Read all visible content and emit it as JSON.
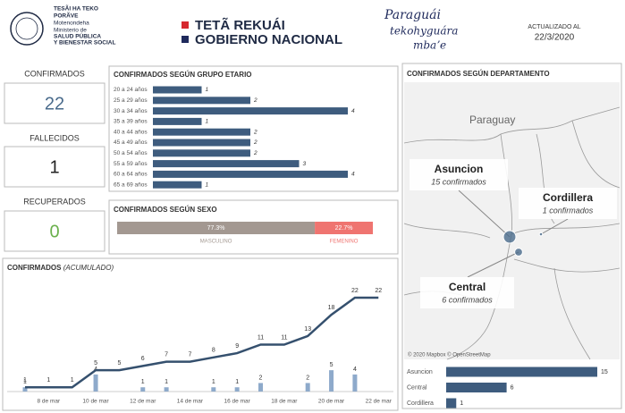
{
  "header": {
    "ministry": [
      "TESÃI HA TEKO",
      "PORÃVE",
      "Motenondeha",
      "Ministerio de",
      "SALUD PÚBLICA",
      "Y BIENESTAR SOCIAL"
    ],
    "slogan": [
      "TETÃ REKUÁI",
      "GOBIERNO NACIONAL"
    ],
    "script_logo": [
      "Paraguái",
      "tekohyguára",
      "mbaʼe"
    ],
    "updated_label": "ACTUALIZADO AL",
    "updated_date": "22/3/2020"
  },
  "kpis": [
    {
      "label": "CONFIRMADOS",
      "value": 22,
      "color": "#4a6b8c"
    },
    {
      "label": "FALLECIDOS",
      "value": 1,
      "color": "#222222"
    },
    {
      "label": "RECUPERADOS",
      "value": 0,
      "color": "#6ab04c"
    }
  ],
  "chart_data": [
    {
      "type": "hbar",
      "title": "CONFIRMADOS SEGÚN GRUPO ETARIO",
      "categories": [
        "20 a 24 años",
        "25 a 29 años",
        "30 a 34 años",
        "35 a 39 años",
        "40 a 44 años",
        "45 a 49 años",
        "50 a 54 años",
        "55 a 59 años",
        "60 a 64 años",
        "65 a 69 años"
      ],
      "values": [
        1,
        2,
        4,
        1,
        2,
        2,
        2,
        3,
        4,
        1
      ],
      "color": "#3e5c7e"
    },
    {
      "type": "stacked",
      "title": "CONFIRMADOS SEGÚN SEXO",
      "categories": [
        "MASCULINO",
        "FEMENINO"
      ],
      "values": [
        77.3,
        22.7
      ],
      "value_labels": [
        "77.3%",
        "22.7%"
      ],
      "colors": [
        "#a39891",
        "#ef7470"
      ]
    },
    {
      "type": "combo",
      "title": "CONFIRMADOS",
      "subtitle": "(ACUMULADO)",
      "categories": [
        null,
        "8 de mar",
        null,
        "10 de mar",
        null,
        "12 de mar",
        null,
        "14 de mar",
        null,
        "16 de mar",
        null,
        "18 de mar",
        null,
        "20 de mar",
        null,
        "22 de mar"
      ],
      "series": [
        {
          "type": "bar",
          "color": "#8eaacb",
          "values": [
            1,
            0,
            0,
            4,
            0,
            1,
            1,
            0,
            1,
            1,
            2,
            0,
            2,
            5,
            4,
            0
          ]
        },
        {
          "type": "line",
          "color": "#35506e",
          "values": [
            1,
            1,
            1,
            5,
            5,
            6,
            7,
            7,
            8,
            9,
            11,
            11,
            13,
            18,
            22,
            22
          ]
        }
      ]
    },
    {
      "type": "map",
      "title": "CONFIRMADOS SEGÚN DEPARTAMENTO",
      "map_label": "Paraguay",
      "attribution": "© 2020 Mapbox © OpenStreetMap",
      "categories": [
        "Asuncion",
        "Cordillera",
        "Central"
      ],
      "values": [
        15,
        1,
        6
      ],
      "value_labels": [
        "15 confirmados",
        "1 confirmados",
        "6 confirmados"
      ],
      "color": "#4a6b8c"
    },
    {
      "type": "hbar",
      "categories": [
        "Asuncion",
        "Central",
        "Cordillera"
      ],
      "values": [
        15,
        6,
        1
      ],
      "color": "#3e5c7e"
    }
  ]
}
